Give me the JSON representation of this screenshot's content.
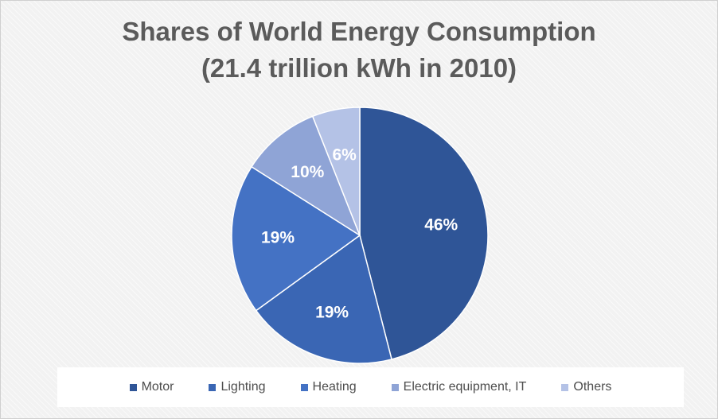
{
  "chart_data": {
    "type": "pie",
    "title": "Shares of World Energy Consumption",
    "subtitle": "(21.4 trillion kWh in 2010)",
    "categories": [
      "Motor",
      "Lighting",
      "Heating",
      "Electric equipment, IT",
      "Others"
    ],
    "values": [
      46,
      19,
      19,
      10,
      6
    ],
    "data_labels": [
      "46%",
      "19%",
      "19%",
      "10%",
      "6%"
    ],
    "colors": [
      "#2f5597",
      "#3a66b4",
      "#4472c4",
      "#8fa4d6",
      "#b4c2e6"
    ],
    "legend_position": "bottom",
    "start_angle_deg": 0,
    "direction": "clockwise"
  }
}
